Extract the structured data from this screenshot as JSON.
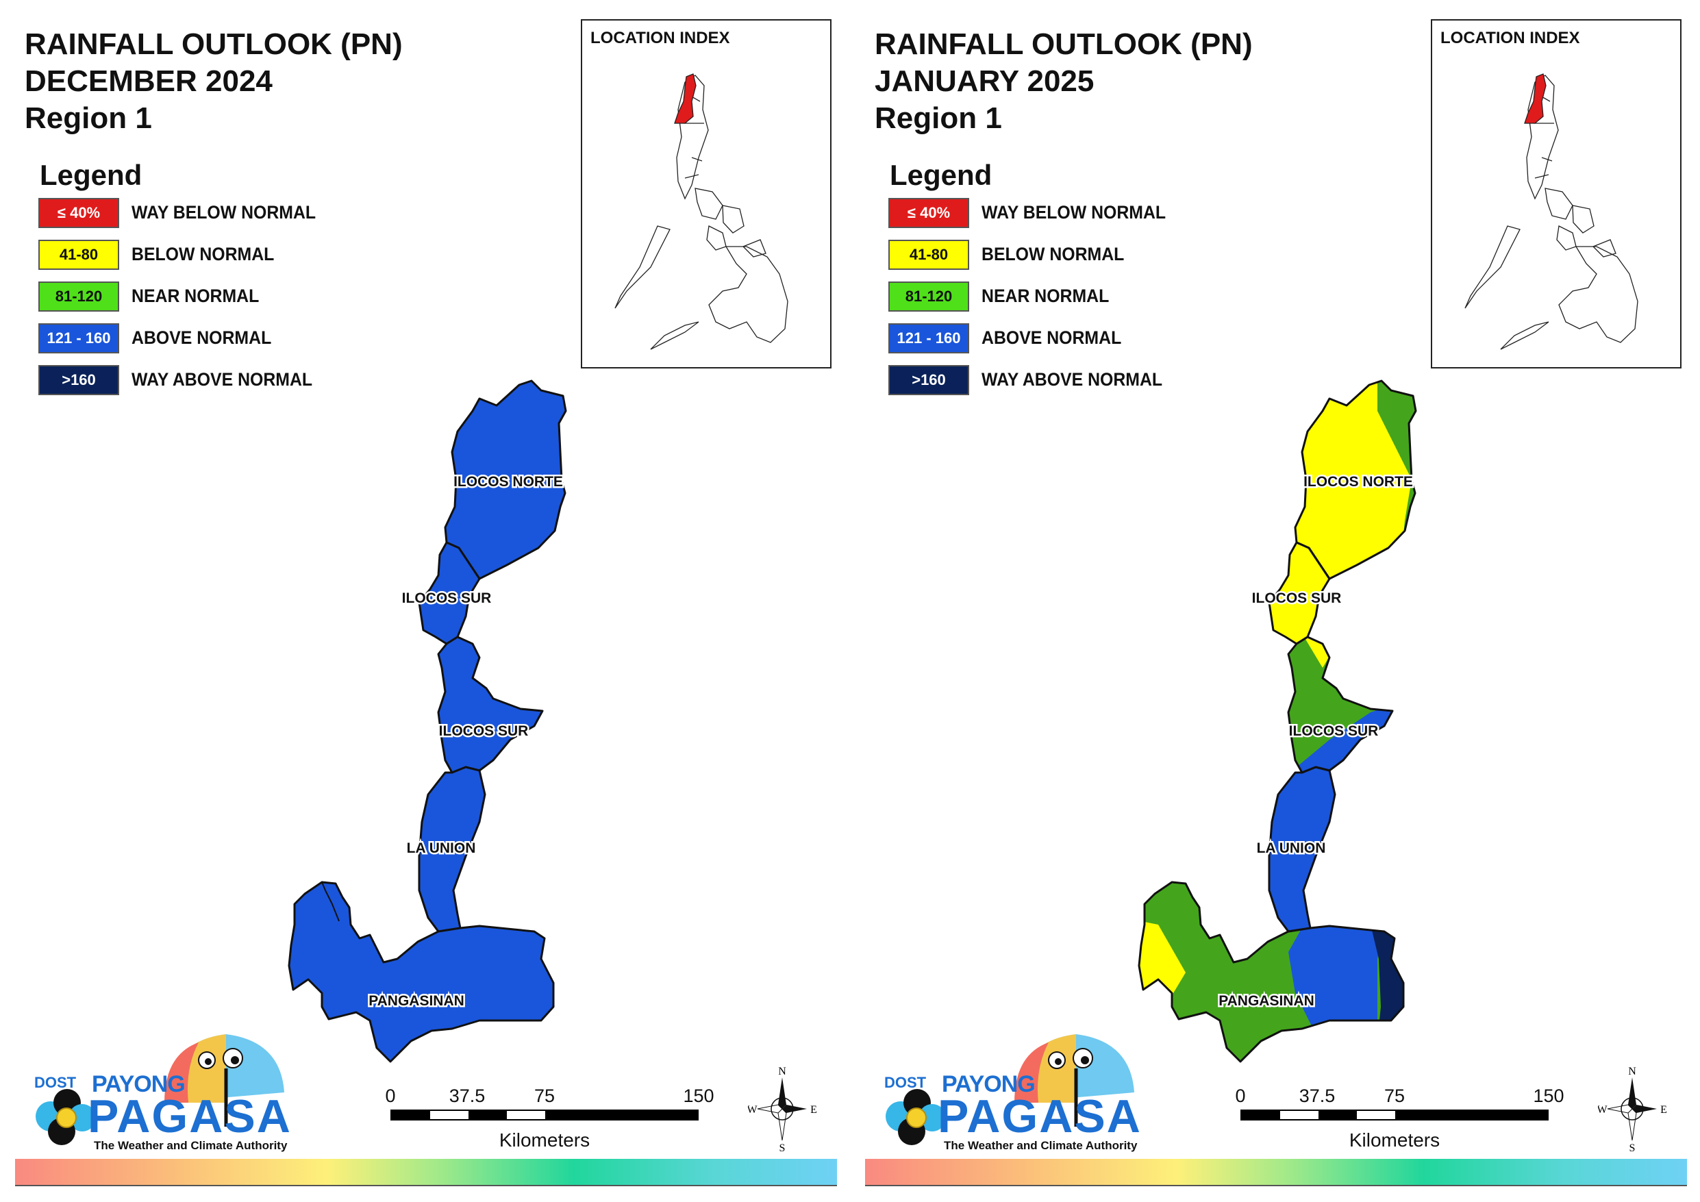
{
  "panels": [
    {
      "title": [
        "RAINFALL OUTLOOK (PN)",
        "DECEMBER 2024",
        "Region 1"
      ],
      "province_fill": {
        "ilocos_norte": "#1a56db",
        "ilocos_sur_north": "#1a56db",
        "ilocos_sur_south": "#1a56db",
        "la_union": "#1a56db",
        "pangasinan": "#1a56db"
      }
    },
    {
      "title": [
        "RAINFALL OUTLOOK (PN)",
        "JANUARY 2025",
        "Region 1"
      ],
      "province_fill": {
        "ilocos_norte": "#ffff00",
        "ilocos_norte_east": "#44a51c",
        "ilocos_sur_north": "#ffff00",
        "ilocos_sur_south": "#44a51c",
        "ilocos_sur_south_east": "#1a56db",
        "la_union": "#1a56db",
        "pangasinan": "#44a51c",
        "pangasinan_west": "#ffff00",
        "pangasinan_east": "#1a56db",
        "pangasinan_far_east": "#0a2259"
      }
    }
  ],
  "legend": {
    "heading": "Legend",
    "items": [
      {
        "range": "≤ 40%",
        "label": "WAY BELOW NORMAL",
        "color": "#e01b1b",
        "text_color": "#ffffff"
      },
      {
        "range": "41-80",
        "label": "BELOW NORMAL",
        "color": "#ffff00",
        "text_color": "#111111"
      },
      {
        "range": "81-120",
        "label": "NEAR NORMAL",
        "color": "#4fe01a",
        "text_color": "#111111"
      },
      {
        "range": "121 - 160",
        "label": "ABOVE NORMAL",
        "color": "#1a56db",
        "text_color": "#ffffff"
      },
      {
        "range": ">160",
        "label": "WAY ABOVE NORMAL",
        "color": "#0a2259",
        "text_color": "#ffffff"
      }
    ]
  },
  "location_index": {
    "title": "LOCATION INDEX",
    "highlight_color": "#e01b1b"
  },
  "provinces": {
    "ilocos_norte": "ILOCOS NORTE",
    "ilocos_sur_1": "ILOCOS SUR",
    "ilocos_sur_2": "ILOCOS SUR",
    "la_union": "LA UNION",
    "pangasinan": "PANGASINAN"
  },
  "scale": {
    "ticks": [
      "0",
      "37.5",
      "75",
      "150"
    ],
    "unit": "Kilometers"
  },
  "compass": {
    "n": "N",
    "e": "E",
    "s": "S",
    "w": "W"
  },
  "brand": {
    "dost": "DOST",
    "payong": "PAYONG",
    "pagasa": "PAGASA",
    "tagline": "The Weather and Climate Authority"
  }
}
